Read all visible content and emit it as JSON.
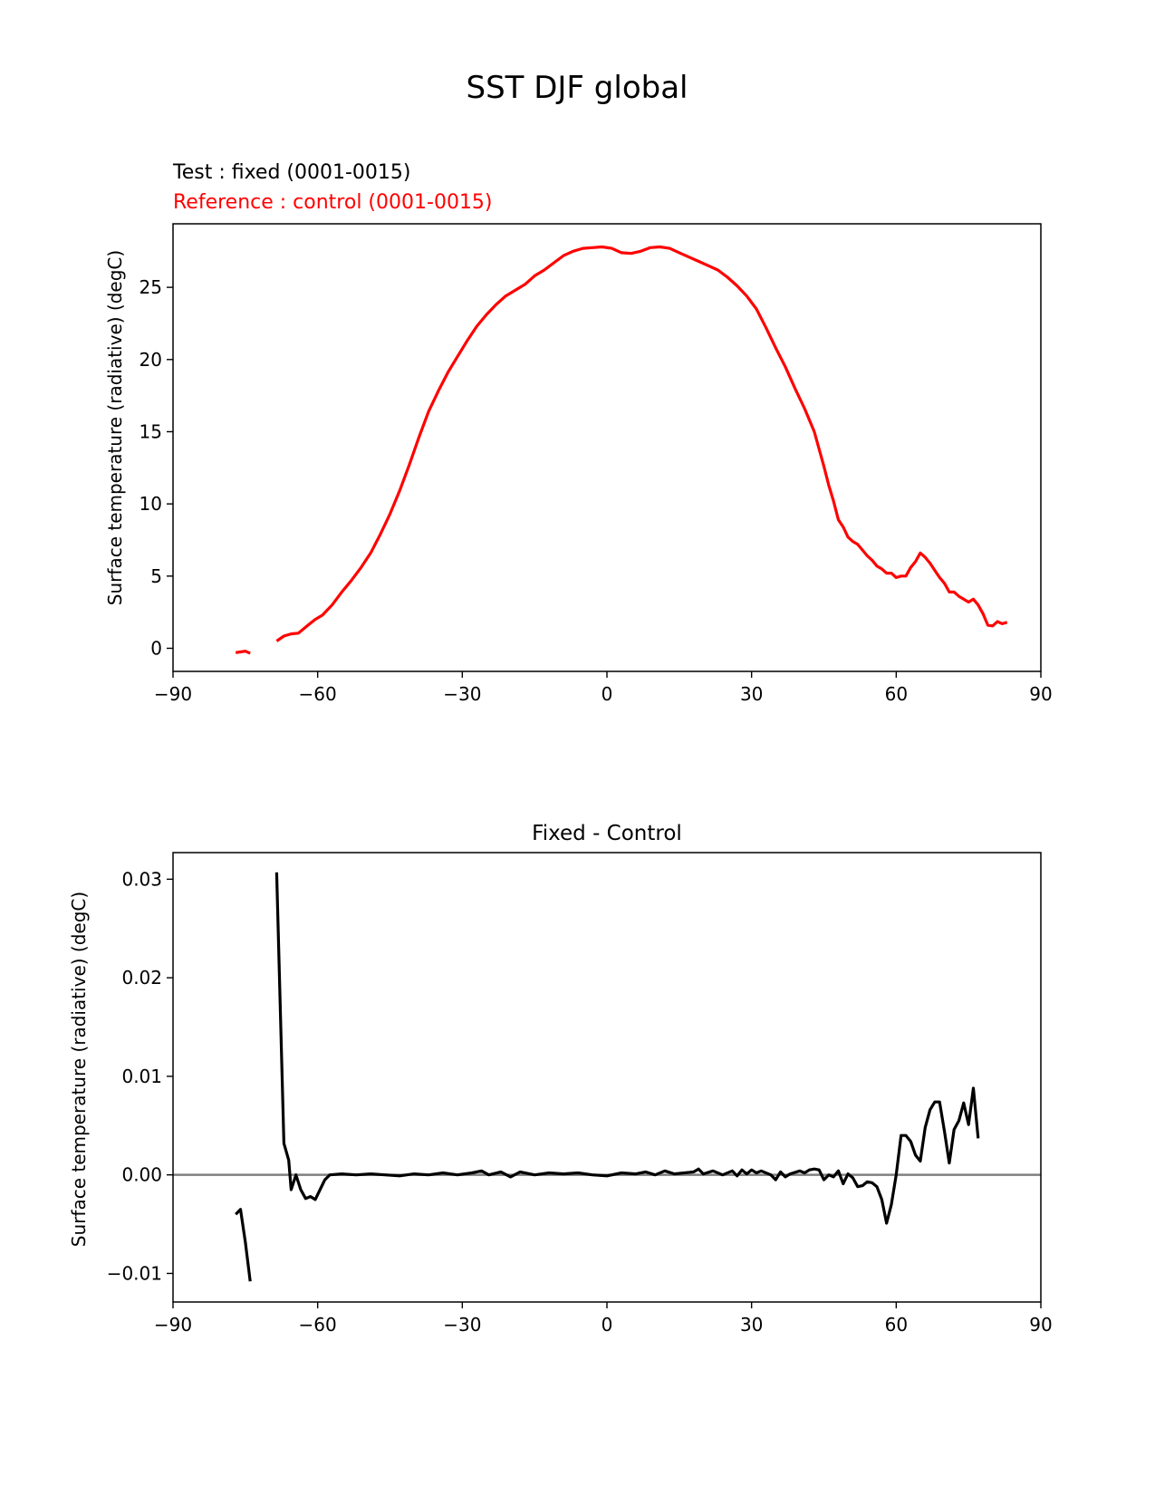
{
  "figure": {
    "title": "SST DJF global"
  },
  "colors": {
    "test": "#000000",
    "reference": "#ff0000",
    "zero_line": "#808080",
    "diff": "#000000"
  },
  "chart_data": [
    {
      "type": "line",
      "test_label": "Test : fixed (0001-0015)",
      "reference_label": "Reference : control (0001-0015)",
      "title": "",
      "xlabel": "",
      "ylabel": "Surface temperature (radiative) (degC)",
      "xlim": [
        -90,
        90
      ],
      "ylim": [
        -1.6,
        29.4
      ],
      "xticks": [
        -90,
        -60,
        -30,
        0,
        30,
        60,
        90
      ],
      "xtick_labels": [
        "−90",
        "−60",
        "−30",
        "0",
        "30",
        "60",
        "90"
      ],
      "yticks": [
        0,
        5,
        10,
        15,
        20,
        25
      ],
      "ytick_labels": [
        "0",
        "5",
        "10",
        "15",
        "20",
        "25"
      ],
      "series": [
        {
          "name": "reference",
          "segments": [
            [
              [
                -77,
                -0.3
              ],
              [
                -76,
                -0.25
              ],
              [
                -75,
                -0.2
              ],
              [
                -74,
                -0.35
              ]
            ],
            [
              [
                -68.5,
                0.5
              ],
              [
                -67,
                0.85
              ],
              [
                -65.5,
                1.0
              ],
              [
                -64,
                1.05
              ],
              [
                -62,
                1.6
              ],
              [
                -60.5,
                2.0
              ],
              [
                -59,
                2.3
              ],
              [
                -57,
                3.0
              ],
              [
                -55,
                3.9
              ],
              [
                -53,
                4.7
              ],
              [
                -51,
                5.6
              ],
              [
                -49,
                6.6
              ],
              [
                -47,
                7.9
              ],
              [
                -45,
                9.3
              ],
              [
                -43,
                10.9
              ],
              [
                -41,
                12.7
              ],
              [
                -39,
                14.6
              ],
              [
                -37,
                16.4
              ],
              [
                -35,
                17.8
              ],
              [
                -33,
                19.1
              ],
              [
                -31,
                20.2
              ],
              [
                -29,
                21.3
              ],
              [
                -27,
                22.3
              ],
              [
                -25,
                23.1
              ],
              [
                -23,
                23.8
              ],
              [
                -21,
                24.4
              ],
              [
                -19,
                24.8
              ],
              [
                -17,
                25.2
              ],
              [
                -15,
                25.8
              ],
              [
                -13,
                26.2
              ],
              [
                -11,
                26.7
              ],
              [
                -9,
                27.2
              ],
              [
                -7,
                27.5
              ],
              [
                -5,
                27.7
              ],
              [
                -3,
                27.75
              ],
              [
                -1,
                27.8
              ],
              [
                1,
                27.7
              ],
              [
                3,
                27.4
              ],
              [
                5,
                27.35
              ],
              [
                7,
                27.5
              ],
              [
                9,
                27.75
              ],
              [
                11,
                27.8
              ],
              [
                13,
                27.7
              ],
              [
                15,
                27.4
              ],
              [
                17,
                27.1
              ],
              [
                19,
                26.8
              ],
              [
                21,
                26.5
              ],
              [
                23,
                26.2
              ],
              [
                25,
                25.7
              ],
              [
                27,
                25.1
              ],
              [
                29,
                24.4
              ],
              [
                31,
                23.5
              ],
              [
                33,
                22.2
              ],
              [
                35,
                20.8
              ],
              [
                37,
                19.5
              ],
              [
                39,
                18.0
              ],
              [
                41,
                16.6
              ],
              [
                43,
                15.0
              ],
              [
                45,
                12.6
              ],
              [
                46,
                11.3
              ],
              [
                47,
                10.2
              ],
              [
                48,
                8.9
              ],
              [
                49,
                8.4
              ],
              [
                50,
                7.7
              ],
              [
                51,
                7.4
              ],
              [
                52,
                7.2
              ],
              [
                53,
                6.8
              ],
              [
                54,
                6.4
              ],
              [
                55,
                6.1
              ],
              [
                56,
                5.7
              ],
              [
                57,
                5.5
              ],
              [
                58,
                5.2
              ],
              [
                59,
                5.2
              ],
              [
                60,
                4.9
              ],
              [
                61,
                5.0
              ],
              [
                62,
                5.0
              ],
              [
                63,
                5.6
              ],
              [
                64,
                6.0
              ],
              [
                65,
                6.6
              ],
              [
                66,
                6.3
              ],
              [
                67,
                5.9
              ],
              [
                68,
                5.4
              ],
              [
                69,
                4.9
              ],
              [
                70,
                4.5
              ],
              [
                71,
                3.9
              ],
              [
                72,
                3.9
              ],
              [
                73,
                3.6
              ],
              [
                74,
                3.4
              ],
              [
                75,
                3.2
              ],
              [
                76,
                3.4
              ],
              [
                77,
                3.0
              ],
              [
                78,
                2.4
              ],
              [
                79,
                1.6
              ],
              [
                80,
                1.55
              ],
              [
                81,
                1.85
              ],
              [
                82,
                1.7
              ],
              [
                83,
                1.8
              ]
            ]
          ]
        }
      ]
    },
    {
      "type": "line",
      "title": "Fixed - Control",
      "xlabel": "",
      "ylabel": "Surface temperature (radiative) (degC)",
      "xlim": [
        -90,
        90
      ],
      "ylim": [
        -0.0129,
        0.0327
      ],
      "xticks": [
        -90,
        -60,
        -30,
        0,
        30,
        60,
        90
      ],
      "xtick_labels": [
        "−90",
        "−60",
        "−30",
        "0",
        "30",
        "60",
        "90"
      ],
      "yticks": [
        -0.01,
        0.0,
        0.01,
        0.02,
        0.03
      ],
      "ytick_labels": [
        "−0.01",
        "0.00",
        "0.01",
        "0.02",
        "0.03"
      ],
      "hline": 0.0,
      "series": [
        {
          "name": "Fixed - Control",
          "segments": [
            [
              [
                -77,
                -0.004
              ],
              [
                -76,
                -0.0035
              ],
              [
                -75,
                -0.0068
              ],
              [
                -74,
                -0.0108
              ]
            ],
            [
              [
                -68.5,
                0.0307
              ],
              [
                -67,
                0.0032
              ],
              [
                -66,
                0.0015
              ],
              [
                -65.5,
                -0.0015
              ],
              [
                -64.5,
                0.0
              ],
              [
                -63.5,
                -0.0015
              ],
              [
                -62.5,
                -0.0024
              ],
              [
                -61.5,
                -0.0022
              ],
              [
                -60.5,
                -0.0025
              ],
              [
                -59.5,
                -0.0015
              ],
              [
                -58.5,
                -0.0005
              ],
              [
                -57.5,
                0.0
              ],
              [
                -55,
                0.0001
              ],
              [
                -52,
                0.0
              ],
              [
                -49,
                0.0001
              ],
              [
                -46,
                0.0
              ],
              [
                -43,
                -0.0001
              ],
              [
                -40,
                0.0001
              ],
              [
                -37,
                0.0
              ],
              [
                -34,
                0.0002
              ],
              [
                -31,
                0.0
              ],
              [
                -28,
                0.0002
              ],
              [
                -26,
                0.0004
              ],
              [
                -24.5,
                0.0
              ],
              [
                -22,
                0.0003
              ],
              [
                -20,
                -0.0002
              ],
              [
                -18,
                0.0003
              ],
              [
                -15,
                0.0
              ],
              [
                -12,
                0.0002
              ],
              [
                -9,
                0.0001
              ],
              [
                -6,
                0.0002
              ],
              [
                -3,
                0.0
              ],
              [
                0,
                -0.0001
              ],
              [
                3,
                0.0002
              ],
              [
                6,
                0.0001
              ],
              [
                8,
                0.0003
              ],
              [
                10,
                0.0
              ],
              [
                12,
                0.0004
              ],
              [
                14,
                0.0001
              ],
              [
                16,
                0.0002
              ],
              [
                18,
                0.0003
              ],
              [
                19,
                0.0006
              ],
              [
                20,
                0.0001
              ],
              [
                22,
                0.0004
              ],
              [
                24,
                0.0
              ],
              [
                26,
                0.0004
              ],
              [
                27,
                -0.0001
              ],
              [
                28,
                0.0005
              ],
              [
                29,
                0.0001
              ],
              [
                30,
                0.0005
              ],
              [
                31,
                0.0002
              ],
              [
                32,
                0.0004
              ],
              [
                34,
                0.0
              ],
              [
                35,
                -0.0005
              ],
              [
                36,
                0.0003
              ],
              [
                37,
                -0.0002
              ],
              [
                38,
                0.0001
              ],
              [
                40,
                0.0004
              ],
              [
                41,
                0.0002
              ],
              [
                42,
                0.0005
              ],
              [
                43,
                0.0006
              ],
              [
                44,
                0.0005
              ],
              [
                45,
                -0.0005
              ],
              [
                46,
                0.0
              ],
              [
                47,
                -0.0002
              ],
              [
                48,
                0.0004
              ],
              [
                49,
                -0.0009
              ],
              [
                50,
                0.0001
              ],
              [
                51,
                -0.0003
              ],
              [
                52,
                -0.0012
              ],
              [
                53,
                -0.0011
              ],
              [
                54,
                -0.0007
              ],
              [
                55,
                -0.0008
              ],
              [
                56,
                -0.0012
              ],
              [
                57,
                -0.0025
              ],
              [
                58,
                -0.0049
              ],
              [
                59,
                -0.003
              ],
              [
                60,
                0.0
              ],
              [
                61,
                0.004
              ],
              [
                62,
                0.004
              ],
              [
                63,
                0.0034
              ],
              [
                64,
                0.002
              ],
              [
                65,
                0.0014
              ],
              [
                66,
                0.0048
              ],
              [
                67,
                0.0066
              ],
              [
                68,
                0.0074
              ],
              [
                69,
                0.0074
              ],
              [
                70,
                0.0044
              ],
              [
                71,
                0.0012
              ],
              [
                72,
                0.0046
              ],
              [
                73,
                0.0055
              ],
              [
                74,
                0.0073
              ],
              [
                75,
                0.0051
              ],
              [
                76,
                0.0088
              ],
              [
                77,
                0.0037
              ]
            ]
          ]
        }
      ]
    }
  ]
}
